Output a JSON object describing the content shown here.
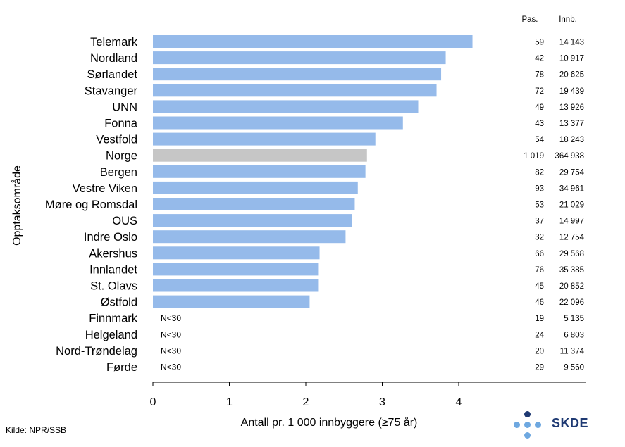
{
  "chart_data": {
    "type": "bar",
    "orientation": "horizontal",
    "ylabel": "Opptaksområde",
    "xlabel": "Antall pr. 1 000 innbyggere (≥75 år)",
    "xlim": [
      0,
      5
    ],
    "xticks": [
      0,
      1,
      2,
      3,
      4
    ],
    "grid": false,
    "legend": "none",
    "bar_color": "#95baea",
    "highlight_color": "#c6c6c6",
    "highlight_category": "Norge",
    "below_threshold_label": "N<30",
    "table_headers": {
      "pas": "Pas.",
      "innb": "Innb."
    },
    "categories": [
      "Telemark",
      "Nordland",
      "Sørlandet",
      "Stavanger",
      "UNN",
      "Fonna",
      "Vestfold",
      "Norge",
      "Bergen",
      "Vestre Viken",
      "Møre og Romsdal",
      "OUS",
      "Indre Oslo",
      "Akershus",
      "Innlandet",
      "St. Olavs",
      "Østfold",
      "Finnmark",
      "Helgeland",
      "Nord-Trøndelag",
      "Førde"
    ],
    "values": [
      4.18,
      3.83,
      3.77,
      3.71,
      3.47,
      3.27,
      2.91,
      2.8,
      2.78,
      2.68,
      2.64,
      2.6,
      2.52,
      2.18,
      2.17,
      2.17,
      2.05,
      null,
      null,
      null,
      null
    ],
    "pas": [
      "59",
      "42",
      "78",
      "72",
      "49",
      "43",
      "54",
      "1 019",
      "82",
      "93",
      "53",
      "37",
      "32",
      "66",
      "76",
      "45",
      "46",
      "19",
      "24",
      "20",
      "29"
    ],
    "innb": [
      "14 143",
      "10 917",
      "20 625",
      "19 439",
      "13 926",
      "13 377",
      "18 243",
      "364 938",
      "29 754",
      "34 961",
      "21 029",
      "14 997",
      "12 754",
      "29 568",
      "35 385",
      "20 852",
      "22 096",
      "5 135",
      "6 803",
      "11 374",
      "9 560"
    ]
  },
  "footer": {
    "source": "Kilde: NPR/SSB",
    "logo_text": "SKDE",
    "logo_dark": "#1f3a73",
    "logo_light": "#6ea8e0"
  }
}
